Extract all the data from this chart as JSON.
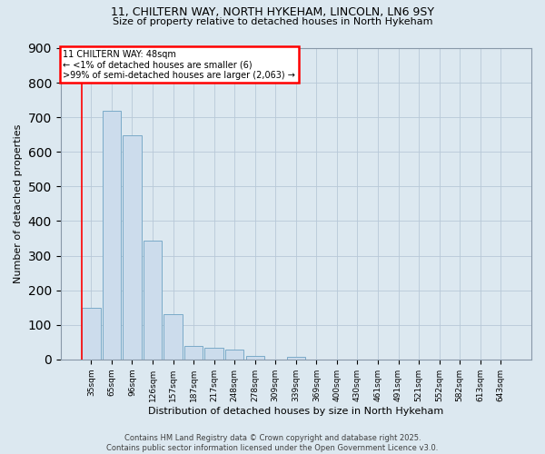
{
  "title_line1": "11, CHILTERN WAY, NORTH HYKEHAM, LINCOLN, LN6 9SY",
  "title_line2": "Size of property relative to detached houses in North Hykeham",
  "categories": [
    "35sqm",
    "65sqm",
    "96sqm",
    "126sqm",
    "157sqm",
    "187sqm",
    "217sqm",
    "248sqm",
    "278sqm",
    "309sqm",
    "339sqm",
    "369sqm",
    "400sqm",
    "430sqm",
    "461sqm",
    "491sqm",
    "521sqm",
    "552sqm",
    "582sqm",
    "613sqm",
    "643sqm"
  ],
  "values": [
    150,
    720,
    648,
    343,
    130,
    40,
    35,
    28,
    10,
    0,
    8,
    0,
    0,
    0,
    0,
    0,
    0,
    0,
    0,
    0,
    0
  ],
  "bar_color": "#ccdcec",
  "bar_edge_color": "#7aaac8",
  "ylabel": "Number of detached properties",
  "xlabel": "Distribution of detached houses by size in North Hykeham",
  "ylim": [
    0,
    900
  ],
  "yticks": [
    0,
    100,
    200,
    300,
    400,
    500,
    600,
    700,
    800,
    900
  ],
  "annotation_title": "11 CHILTERN WAY: 48sqm",
  "annotation_line2": "← <1% of detached houses are smaller (6)",
  "annotation_line3": ">99% of semi-detached houses are larger (2,063) →",
  "footer_line1": "Contains HM Land Registry data © Crown copyright and database right 2025.",
  "footer_line2": "Contains public sector information licensed under the Open Government Licence v3.0.",
  "background_color": "#dce8f0",
  "plot_bg_color": "#dce8f0",
  "grid_color": "#b8c8d8",
  "title_fontsize": 9,
  "subtitle_fontsize": 8,
  "tick_fontsize": 6.5,
  "label_fontsize": 8,
  "ann_fontsize": 7,
  "footer_fontsize": 6
}
